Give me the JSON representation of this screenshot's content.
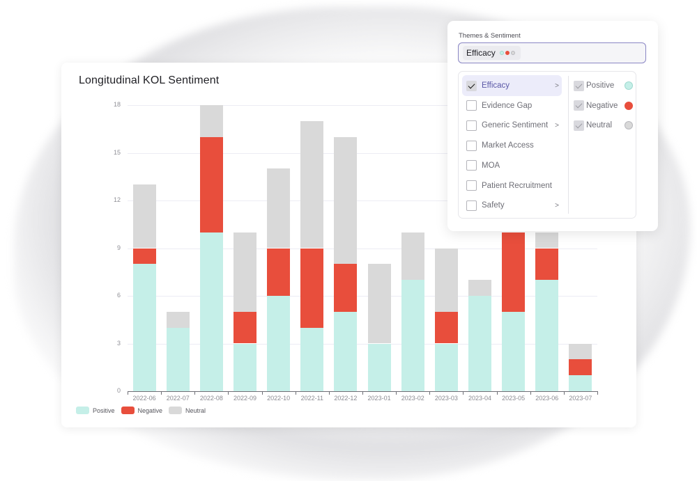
{
  "colors": {
    "positive": "#c5efe8",
    "negative": "#e84e3c",
    "neutral": "#d9d9d9",
    "accent": "#8a86c4"
  },
  "card": {
    "title": "Longitudinal KOL Sentiment"
  },
  "legend": [
    {
      "label": "Positive",
      "color": "#c5efe8"
    },
    {
      "label": "Negative",
      "color": "#e84e3c"
    },
    {
      "label": "Neutral",
      "color": "#d9d9d9"
    }
  ],
  "chart_data": {
    "type": "bar",
    "stacked": true,
    "title": "Longitudinal KOL Sentiment",
    "xlabel": "",
    "ylabel": "",
    "ylim": [
      0,
      18
    ],
    "yticks": [
      0,
      3,
      6,
      9,
      12,
      15,
      18
    ],
    "grid": true,
    "legend_position": "bottom-left",
    "categories": [
      "2022-06",
      "2022-07",
      "2022-08",
      "2022-09",
      "2022-10",
      "2022-11",
      "2022-12",
      "2023-01",
      "2023-02",
      "2023-03",
      "2023-04",
      "2023-05",
      "2023-06",
      "2023-07"
    ],
    "series": [
      {
        "name": "Positive",
        "color": "#c5efe8",
        "values": [
          8,
          4,
          10,
          3,
          6,
          4,
          5,
          3,
          7,
          3,
          6,
          5,
          7,
          1
        ]
      },
      {
        "name": "Negative",
        "color": "#e84e3c",
        "values": [
          1,
          0,
          6,
          2,
          3,
          5,
          3,
          0,
          0,
          2,
          0,
          5,
          2,
          1
        ]
      },
      {
        "name": "Neutral",
        "color": "#d9d9d9",
        "values": [
          4,
          1,
          2,
          5,
          5,
          8,
          8,
          5,
          3,
          4,
          1,
          0,
          1,
          1
        ]
      }
    ],
    "notes": "2023-05 and 2023-06 bar tops are partially covered by the Themes & Sentiment popup; values shown are visible portions."
  },
  "popup": {
    "label": "Themes & Sentiment",
    "selected_chip": "Efficacy",
    "chip_dots": [
      {
        "name": "positive",
        "fill": "#c5efe8",
        "border": "#9fd9cf"
      },
      {
        "name": "negative",
        "fill": "#e84e3c",
        "border": "#e84e3c"
      },
      {
        "name": "neutral",
        "fill": "#d9d9d9",
        "border": "#b8b8bd"
      }
    ],
    "themes": [
      {
        "label": "Efficacy",
        "checked": true,
        "has_submenu": true,
        "active": true
      },
      {
        "label": "Evidence Gap",
        "checked": false,
        "has_submenu": false,
        "active": false
      },
      {
        "label": "Generic Sentiment",
        "checked": false,
        "has_submenu": true,
        "active": false
      },
      {
        "label": "Market Access",
        "checked": false,
        "has_submenu": false,
        "active": false
      },
      {
        "label": "MOA",
        "checked": false,
        "has_submenu": false,
        "active": false
      },
      {
        "label": "Patient Recruitment",
        "checked": false,
        "has_submenu": false,
        "active": false
      },
      {
        "label": "Safety",
        "checked": false,
        "has_submenu": true,
        "active": false
      }
    ],
    "submenu_chevron": ">",
    "sentiments": [
      {
        "label": "Positive",
        "checked": true,
        "dot_fill": "#c5efe8",
        "dot_border": "#9fd9cf"
      },
      {
        "label": "Negative",
        "checked": true,
        "dot_fill": "#e84e3c",
        "dot_border": "#e84e3c"
      },
      {
        "label": "Neutral",
        "checked": true,
        "dot_fill": "#d9d9d9",
        "dot_border": "#b8b8bd"
      }
    ]
  }
}
